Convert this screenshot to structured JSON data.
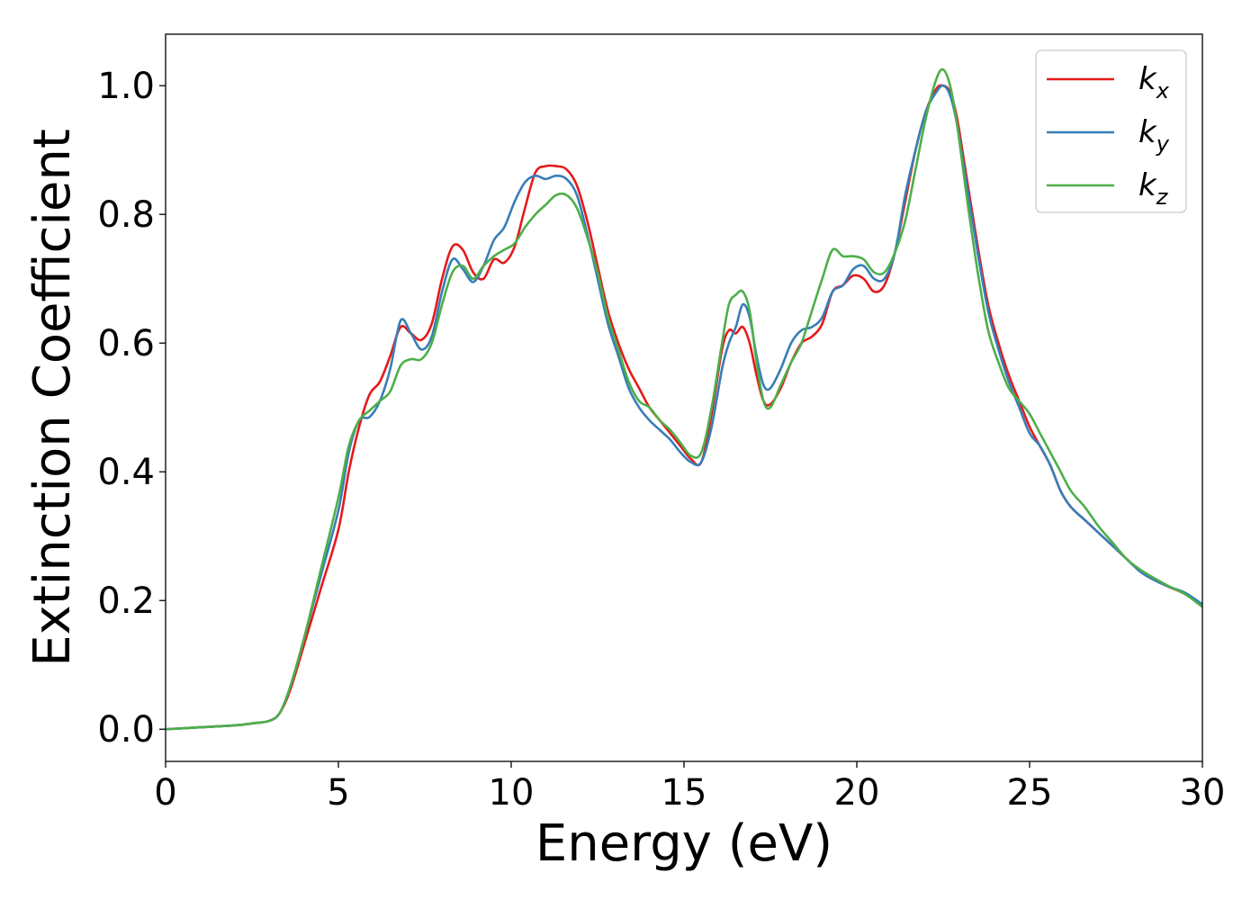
{
  "chart_data": {
    "type": "line",
    "title": "",
    "xlabel": "Energy (eV)",
    "ylabel": "Extinction Coefficient",
    "xlim": [
      0,
      30
    ],
    "ylim": [
      -0.05,
      1.08
    ],
    "xticks": [
      0,
      5,
      10,
      15,
      20,
      25,
      30
    ],
    "xtick_labels": [
      "0",
      "5",
      "10",
      "15",
      "20",
      "25",
      "30"
    ],
    "yticks": [
      0.0,
      0.2,
      0.4,
      0.6,
      0.8,
      1.0
    ],
    "ytick_labels": [
      "0.0",
      "0.2",
      "0.4",
      "0.6",
      "0.8",
      "1.0"
    ],
    "grid": false,
    "legend_position": "upper right",
    "series": [
      {
        "name": "k_x",
        "label_main": "k",
        "label_sub": "x",
        "color": "#e41a1c",
        "x": [
          0,
          1,
          2,
          2.5,
          3,
          3.3,
          3.6,
          4.0,
          4.5,
          5.0,
          5.3,
          5.6,
          5.9,
          6.2,
          6.5,
          6.8,
          7.1,
          7.4,
          7.7,
          8.0,
          8.3,
          8.6,
          8.9,
          9.2,
          9.5,
          9.8,
          10.1,
          10.4,
          10.7,
          11.0,
          11.3,
          11.6,
          11.9,
          12.2,
          12.5,
          12.8,
          13.1,
          13.4,
          13.7,
          14.0,
          14.3,
          14.6,
          14.9,
          15.2,
          15.5,
          15.8,
          16.1,
          16.3,
          16.5,
          16.7,
          16.9,
          17.1,
          17.3,
          17.5,
          17.8,
          18.1,
          18.4,
          18.7,
          19.0,
          19.3,
          19.6,
          19.9,
          20.2,
          20.5,
          20.8,
          21.1,
          21.4,
          21.7,
          22.0,
          22.3,
          22.5,
          22.7,
          22.9,
          23.2,
          23.5,
          23.8,
          24.1,
          24.4,
          24.7,
          25.0,
          25.3,
          25.6,
          25.9,
          26.2,
          26.6,
          27.0,
          27.4,
          27.8,
          28.2,
          28.6,
          29.0,
          29.5,
          30
        ],
        "y": [
          0.0,
          0.003,
          0.006,
          0.009,
          0.013,
          0.025,
          0.06,
          0.13,
          0.22,
          0.31,
          0.4,
          0.47,
          0.52,
          0.54,
          0.58,
          0.625,
          0.615,
          0.605,
          0.63,
          0.7,
          0.75,
          0.745,
          0.71,
          0.7,
          0.73,
          0.725,
          0.75,
          0.81,
          0.865,
          0.875,
          0.875,
          0.87,
          0.845,
          0.79,
          0.72,
          0.65,
          0.6,
          0.56,
          0.53,
          0.5,
          0.48,
          0.46,
          0.44,
          0.42,
          0.415,
          0.49,
          0.59,
          0.62,
          0.615,
          0.625,
          0.6,
          0.55,
          0.51,
          0.505,
          0.53,
          0.57,
          0.6,
          0.61,
          0.63,
          0.68,
          0.69,
          0.705,
          0.7,
          0.68,
          0.69,
          0.74,
          0.82,
          0.9,
          0.96,
          0.995,
          1.0,
          0.99,
          0.95,
          0.85,
          0.75,
          0.66,
          0.6,
          0.55,
          0.51,
          0.47,
          0.44,
          0.41,
          0.37,
          0.345,
          0.325,
          0.305,
          0.285,
          0.265,
          0.245,
          0.232,
          0.222,
          0.21,
          0.192
        ]
      },
      {
        "name": "k_y",
        "label_main": "k",
        "label_sub": "y",
        "color": "#377eb8",
        "x": [
          0,
          1,
          2,
          2.5,
          3,
          3.3,
          3.6,
          4.0,
          4.5,
          5.0,
          5.3,
          5.6,
          5.9,
          6.2,
          6.5,
          6.8,
          7.1,
          7.4,
          7.7,
          8.0,
          8.3,
          8.6,
          8.9,
          9.2,
          9.5,
          9.8,
          10.1,
          10.4,
          10.7,
          11.0,
          11.3,
          11.6,
          11.9,
          12.2,
          12.5,
          12.8,
          13.1,
          13.4,
          13.7,
          14.0,
          14.3,
          14.6,
          14.9,
          15.2,
          15.5,
          15.8,
          16.1,
          16.3,
          16.5,
          16.7,
          16.9,
          17.1,
          17.3,
          17.5,
          17.8,
          18.1,
          18.4,
          18.7,
          19.0,
          19.3,
          19.6,
          19.9,
          20.2,
          20.5,
          20.8,
          21.1,
          21.4,
          21.7,
          22.0,
          22.3,
          22.5,
          22.7,
          22.9,
          23.2,
          23.5,
          23.8,
          24.1,
          24.4,
          24.7,
          25.0,
          25.3,
          25.6,
          25.9,
          26.2,
          26.6,
          27.0,
          27.4,
          27.8,
          28.2,
          28.6,
          29.0,
          29.5,
          30
        ],
        "y": [
          0.0,
          0.003,
          0.006,
          0.009,
          0.013,
          0.025,
          0.065,
          0.14,
          0.24,
          0.34,
          0.43,
          0.48,
          0.485,
          0.51,
          0.56,
          0.635,
          0.615,
          0.59,
          0.61,
          0.68,
          0.73,
          0.715,
          0.695,
          0.72,
          0.76,
          0.78,
          0.82,
          0.85,
          0.86,
          0.855,
          0.86,
          0.855,
          0.83,
          0.77,
          0.7,
          0.63,
          0.58,
          0.53,
          0.5,
          0.48,
          0.465,
          0.45,
          0.43,
          0.415,
          0.415,
          0.47,
          0.56,
          0.6,
          0.625,
          0.66,
          0.64,
          0.58,
          0.535,
          0.53,
          0.56,
          0.6,
          0.62,
          0.625,
          0.64,
          0.68,
          0.69,
          0.715,
          0.72,
          0.7,
          0.7,
          0.74,
          0.83,
          0.9,
          0.96,
          0.99,
          1.0,
          0.985,
          0.94,
          0.84,
          0.74,
          0.65,
          0.59,
          0.54,
          0.5,
          0.46,
          0.44,
          0.41,
          0.37,
          0.345,
          0.325,
          0.305,
          0.285,
          0.265,
          0.245,
          0.232,
          0.222,
          0.212,
          0.194
        ]
      },
      {
        "name": "k_z",
        "label_main": "k",
        "label_sub": "z",
        "color": "#4daf4a",
        "x": [
          0,
          1,
          2,
          2.5,
          3,
          3.3,
          3.6,
          4.0,
          4.5,
          5.0,
          5.3,
          5.6,
          5.9,
          6.2,
          6.5,
          6.8,
          7.1,
          7.4,
          7.7,
          8.0,
          8.3,
          8.6,
          8.9,
          9.2,
          9.5,
          9.8,
          10.1,
          10.4,
          10.7,
          11.0,
          11.3,
          11.6,
          11.9,
          12.2,
          12.5,
          12.8,
          13.1,
          13.4,
          13.7,
          14.0,
          14.3,
          14.6,
          14.9,
          15.2,
          15.5,
          15.8,
          16.1,
          16.3,
          16.5,
          16.7,
          16.9,
          17.1,
          17.3,
          17.5,
          17.8,
          18.1,
          18.4,
          18.7,
          19.0,
          19.3,
          19.6,
          19.9,
          20.2,
          20.5,
          20.8,
          21.1,
          21.4,
          21.7,
          22.0,
          22.3,
          22.5,
          22.7,
          22.9,
          23.2,
          23.5,
          23.8,
          24.1,
          24.4,
          24.7,
          25.0,
          25.3,
          25.6,
          25.9,
          26.2,
          26.6,
          27.0,
          27.4,
          27.8,
          28.2,
          28.6,
          29.0,
          29.5,
          30
        ],
        "y": [
          0.0,
          0.003,
          0.006,
          0.009,
          0.013,
          0.025,
          0.065,
          0.14,
          0.25,
          0.36,
          0.44,
          0.48,
          0.495,
          0.51,
          0.525,
          0.565,
          0.575,
          0.575,
          0.6,
          0.66,
          0.71,
          0.72,
          0.7,
          0.72,
          0.735,
          0.745,
          0.755,
          0.78,
          0.8,
          0.815,
          0.83,
          0.83,
          0.81,
          0.765,
          0.71,
          0.64,
          0.59,
          0.54,
          0.51,
          0.5,
          0.48,
          0.465,
          0.445,
          0.425,
          0.43,
          0.5,
          0.6,
          0.66,
          0.675,
          0.68,
          0.65,
          0.57,
          0.51,
          0.5,
          0.535,
          0.57,
          0.6,
          0.65,
          0.7,
          0.745,
          0.735,
          0.735,
          0.73,
          0.71,
          0.71,
          0.74,
          0.79,
          0.87,
          0.95,
          1.01,
          1.025,
          1.0,
          0.94,
          0.82,
          0.71,
          0.62,
          0.57,
          0.53,
          0.51,
          0.49,
          0.46,
          0.43,
          0.4,
          0.37,
          0.345,
          0.315,
          0.29,
          0.265,
          0.248,
          0.235,
          0.223,
          0.21,
          0.19
        ]
      }
    ]
  }
}
